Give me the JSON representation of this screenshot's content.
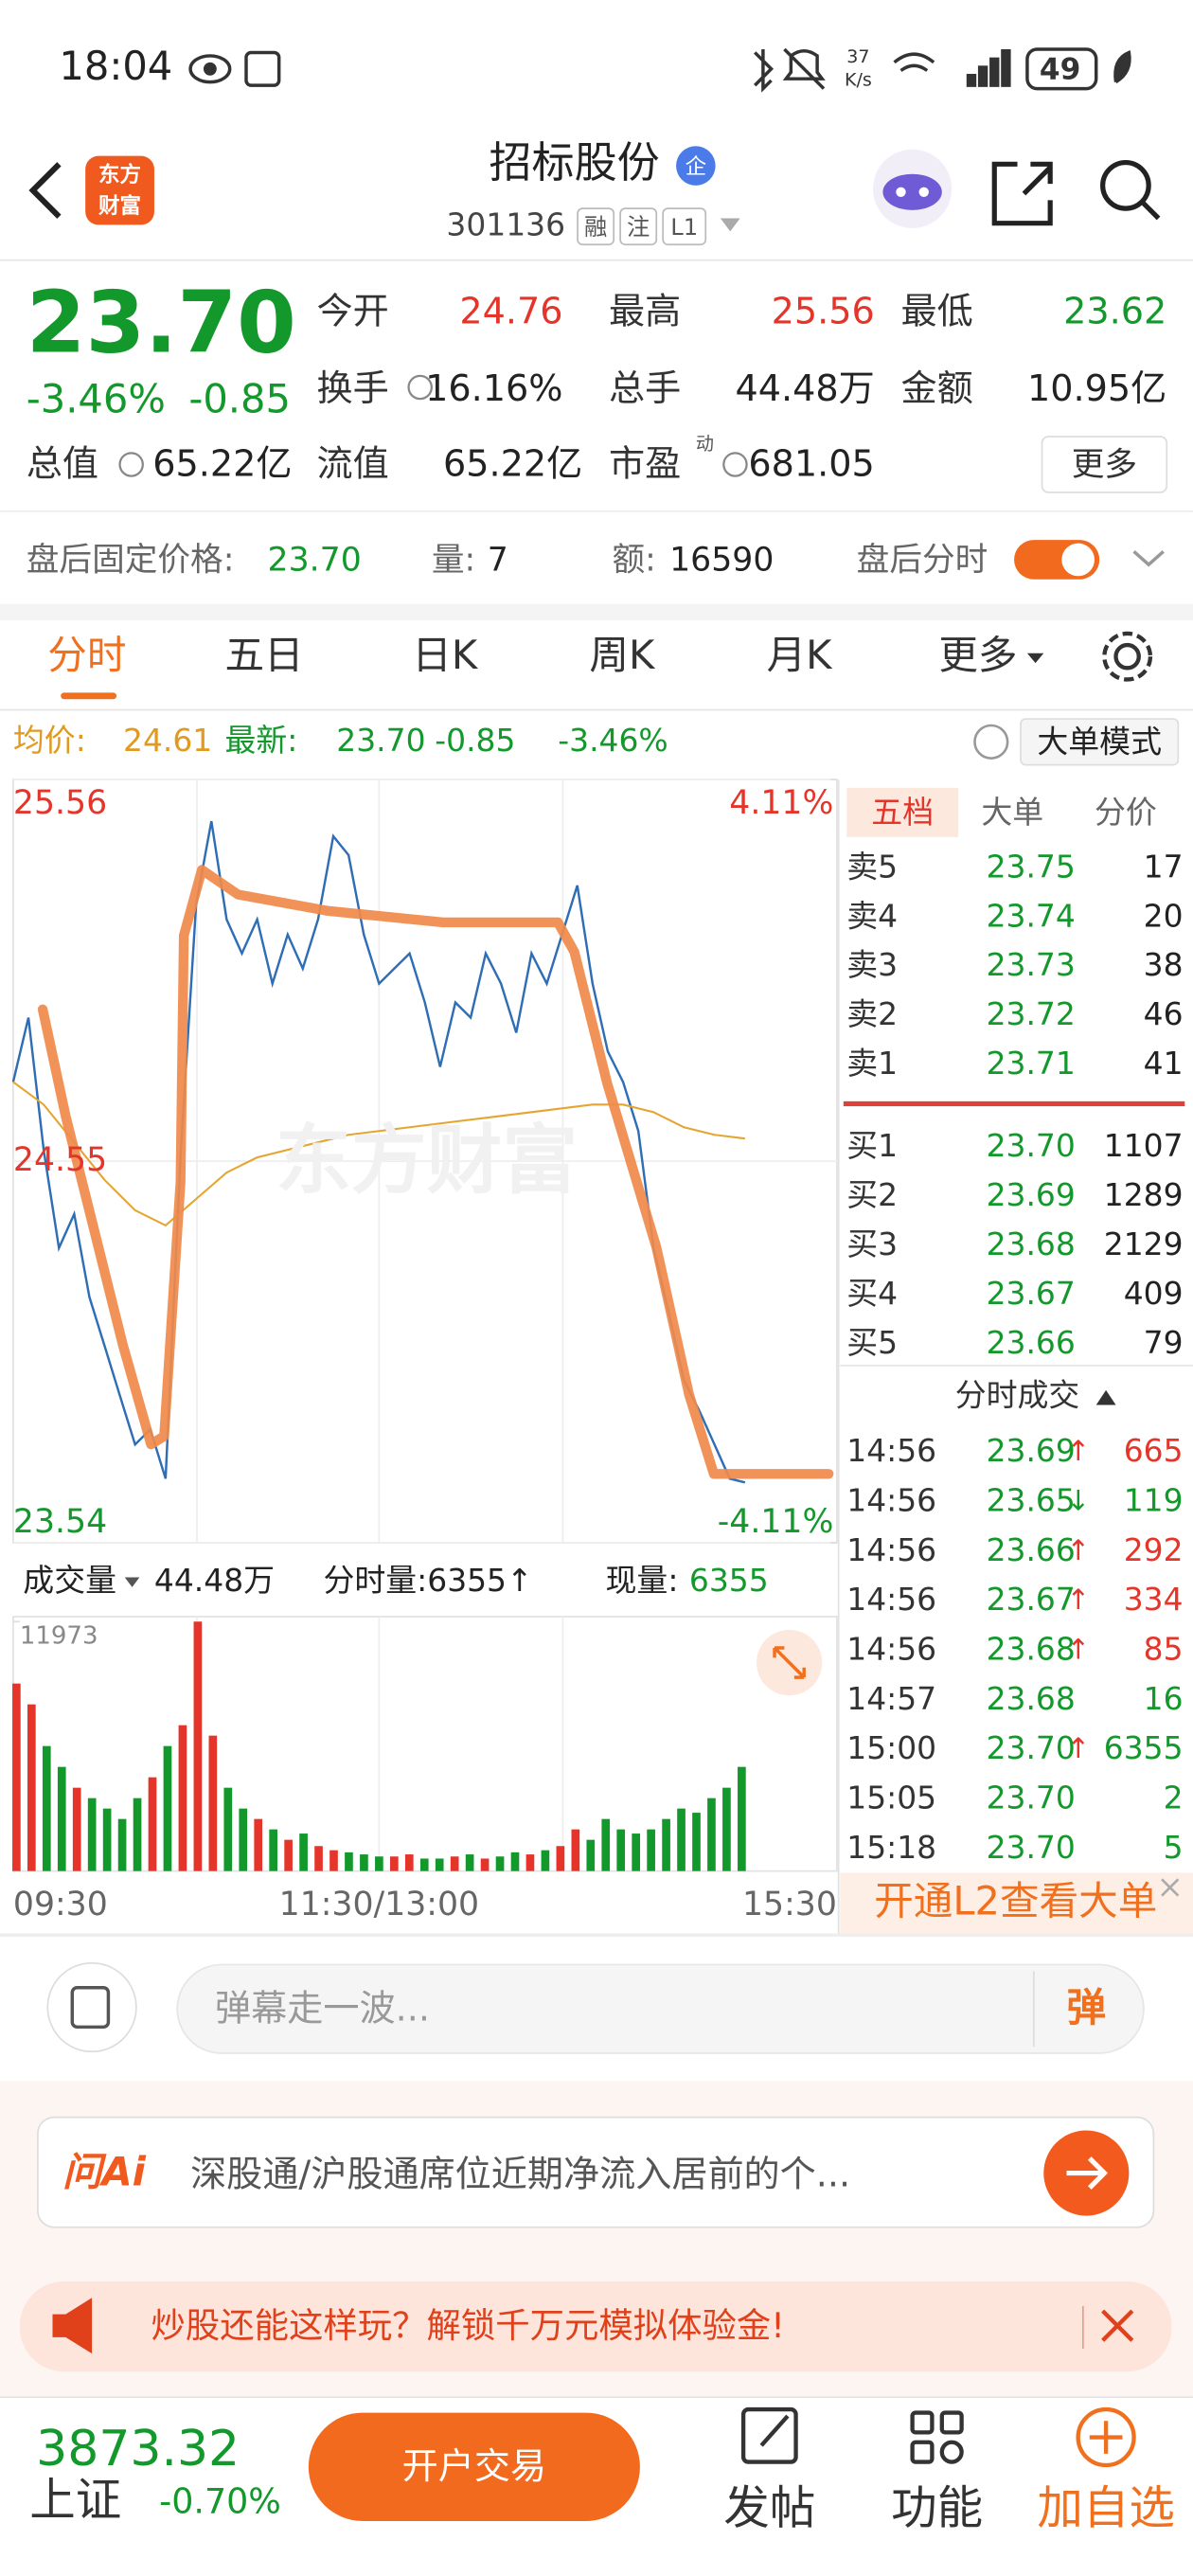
{
  "status_bar": {
    "time": "18:04",
    "net_speed": "37",
    "net_unit": "K/s",
    "battery": "49"
  },
  "header": {
    "logo": [
      "东方",
      "财富"
    ],
    "title": "招标股份",
    "badge": "企",
    "code": "301136",
    "tags": [
      "融",
      "注",
      "L1"
    ]
  },
  "quote": {
    "price": "23.70",
    "change_pct": "-3.46%",
    "change": "-0.85",
    "fields": [
      {
        "label": "今开",
        "value": "24.76",
        "color": "#e5352b"
      },
      {
        "label": "最高",
        "value": "25.56",
        "color": "#e5352b"
      },
      {
        "label": "最低",
        "value": "23.62",
        "color": "#13982c"
      },
      {
        "label": "换手",
        "value": "16.16%"
      },
      {
        "label": "总手",
        "value": "44.48万"
      },
      {
        "label": "金额",
        "value": "10.95亿"
      },
      {
        "label": "总值",
        "value": "65.22亿"
      },
      {
        "label": "流值",
        "value": "65.22亿"
      },
      {
        "label": "市盈",
        "superscript": "动",
        "value": "681.05"
      }
    ],
    "more": "更多"
  },
  "after_hours": {
    "price_label": "盘后固定价格:",
    "price": "23.70",
    "volume_label": "量:",
    "volume": "7",
    "amount_label": "额:",
    "amount": "16590",
    "toggle_label": "盘后分时"
  },
  "tabs": {
    "items": [
      "分时",
      "五日",
      "日K",
      "周K",
      "月K",
      "更多"
    ],
    "active": 0
  },
  "info": {
    "avg_label": "均价:",
    "avg": "24.61",
    "latest_label": "最新:",
    "latest": "23.70",
    "change": "-0.85",
    "change_pct": "-3.46%",
    "mode_button": "大单模式"
  },
  "intraday": {
    "watermark": "东方财富",
    "ylim": [
      23.54,
      25.56
    ],
    "yticks": [
      23.54,
      24.55,
      25.56
    ],
    "y2lim": [
      -4.11,
      4.11
    ],
    "y2ticks": [
      {
        "value": -4.11,
        "label": "-4.11%"
      },
      {
        "value": 4.11,
        "label": "4.11%"
      }
    ],
    "xticks": [
      "09:30",
      "11:30/13:00",
      "15:30"
    ],
    "price": [
      24.76,
      24.93,
      24.58,
      24.32,
      24.41,
      24.19,
      24.06,
      23.93,
      23.8,
      23.84,
      23.71,
      24.58,
      25.23,
      25.45,
      25.19,
      25.1,
      25.19,
      25.02,
      25.15,
      25.06,
      25.19,
      25.41,
      25.36,
      25.15,
      25.02,
      25.06,
      25.1,
      24.97,
      24.8,
      24.97,
      24.93,
      25.1,
      25.02,
      24.89,
      25.1,
      25.02,
      25.15,
      25.28,
      25.02,
      24.84,
      24.76,
      24.63,
      24.32,
      24.15,
      23.97,
      23.89,
      23.8,
      23.71,
      23.7
    ],
    "avg": [
      24.76,
      24.7,
      24.6,
      24.5,
      24.42,
      24.38,
      24.45,
      24.52,
      24.56,
      24.58,
      24.6,
      24.62,
      24.63,
      24.64,
      24.65,
      24.66,
      24.67,
      24.68,
      24.69,
      24.7,
      24.7,
      24.68,
      24.64,
      24.62,
      24.61
    ],
    "volume_label": "成交量",
    "total_volume": "44.48万",
    "minute_volume": "分时量:6355↑",
    "current_label": "现量:",
    "current": "6355",
    "vol_ylim": [
      0,
      11973
    ],
    "vol_yticks": [
      11973
    ],
    "volume": [
      9000,
      8000,
      6000,
      5000,
      4000,
      3500,
      3000,
      2500,
      3500,
      4500,
      6000,
      7000,
      11973,
      6500,
      4000,
      3000,
      2500,
      2000,
      1500,
      1800,
      1200,
      1000,
      900,
      800,
      700,
      700,
      800,
      600,
      600,
      700,
      800,
      600,
      700,
      900,
      800,
      1000,
      1200,
      2000,
      1500,
      2500,
      2000,
      1800,
      2000,
      2500,
      3000,
      2800,
      3500,
      4000,
      5000
    ]
  },
  "order_book": {
    "tabs": [
      "五档",
      "大单",
      "分价"
    ],
    "asks": [
      {
        "label": "卖5",
        "price": "23.75",
        "volume": "17"
      },
      {
        "label": "卖4",
        "price": "23.74",
        "volume": "20"
      },
      {
        "label": "卖3",
        "price": "23.73",
        "volume": "38"
      },
      {
        "label": "卖2",
        "price": "23.72",
        "volume": "46"
      },
      {
        "label": "卖1",
        "price": "23.71",
        "volume": "41"
      }
    ],
    "bids": [
      {
        "label": "买1",
        "price": "23.70",
        "volume": "1107"
      },
      {
        "label": "买2",
        "price": "23.69",
        "volume": "1289"
      },
      {
        "label": "买3",
        "price": "23.68",
        "volume": "2129"
      },
      {
        "label": "买4",
        "price": "23.67",
        "volume": "409"
      },
      {
        "label": "买5",
        "price": "23.66",
        "volume": "79"
      }
    ],
    "trades_title": "分时成交",
    "trades": [
      {
        "time": "14:56",
        "price": "23.69",
        "arrow": "↑",
        "volume": "665",
        "volume_color": "#e5352b"
      },
      {
        "time": "14:56",
        "price": "23.65",
        "arrow": "↓",
        "volume": "119",
        "volume_color": "#13982c"
      },
      {
        "time": "14:56",
        "price": "23.66",
        "arrow": "↑",
        "volume": "292",
        "volume_color": "#e5352b"
      },
      {
        "time": "14:56",
        "price": "23.67",
        "arrow": "↑",
        "volume": "334",
        "volume_color": "#e5352b"
      },
      {
        "time": "14:56",
        "price": "23.68",
        "arrow": "↑",
        "volume": "85",
        "volume_color": "#e5352b"
      },
      {
        "time": "14:57",
        "price": "23.68",
        "volume": "16",
        "volume_color": "#13982c"
      },
      {
        "time": "15:00",
        "price": "23.70",
        "arrow": "↑",
        "volume": "6355",
        "volume_color": "#13982c"
      },
      {
        "time": "15:05",
        "price": "23.70",
        "volume": "2",
        "volume_color": "#13982c"
      },
      {
        "time": "15:18",
        "price": "23.70",
        "volume": "5",
        "volume_color": "#13982c"
      }
    ],
    "upgrade": "开通L2查看大单"
  },
  "comment": {
    "placeholder": "弹幕走一波...",
    "button": "弹"
  },
  "ai": {
    "logo": "问Ai",
    "query": "深股通/沪股通席位近期净流入居前的个..."
  },
  "promo": {
    "text": "炒股还能这样玩？解锁千万元模拟体验金!"
  },
  "bottom_nav": {
    "index_value": "3873.32",
    "index_name": "上证",
    "index_change": "-0.70%",
    "trade_button": "开户交易",
    "items": [
      "发帖",
      "功能",
      "加自选"
    ]
  }
}
